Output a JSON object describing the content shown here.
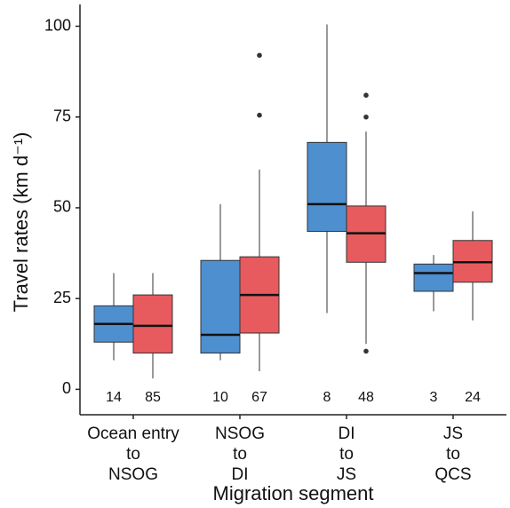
{
  "chart_data": {
    "type": "box",
    "x_label": "Migration segment",
    "y_label": "Travel rates (km d⁻¹)",
    "categories": [
      [
        "Ocean entry",
        "to",
        "NSOG"
      ],
      [
        "NSOG",
        "to",
        "DI"
      ],
      [
        "DI",
        "to",
        "JS"
      ],
      [
        "JS",
        "to",
        "QCS"
      ]
    ],
    "ylim": [
      -7,
      106
    ],
    "yticks": [
      0,
      25,
      50,
      75,
      100
    ],
    "series": [
      {
        "color": "#4e8fcf",
        "n": [
          14,
          10,
          8,
          3
        ],
        "boxes": [
          {
            "whislo": 8,
            "q1": 13,
            "med": 18,
            "q3": 23,
            "whishi": 32,
            "fliers": []
          },
          {
            "whislo": 8,
            "q1": 10,
            "med": 15,
            "q3": 35.5,
            "whishi": 51,
            "fliers": []
          },
          {
            "whislo": 21,
            "q1": 43.5,
            "med": 51,
            "q3": 68,
            "whishi": 100.5,
            "fliers": []
          },
          {
            "whislo": 21.5,
            "q1": 27,
            "med": 32,
            "q3": 34.5,
            "whishi": 37,
            "fliers": []
          }
        ]
      },
      {
        "color": "#e75a5e",
        "n": [
          85,
          67,
          48,
          24
        ],
        "boxes": [
          {
            "whislo": 3,
            "q1": 10,
            "med": 17.5,
            "q3": 26,
            "whishi": 32,
            "fliers": []
          },
          {
            "whislo": 5,
            "q1": 15.5,
            "med": 26,
            "q3": 36.5,
            "whishi": 60.5,
            "fliers": [
              75.5,
              92
            ]
          },
          {
            "whislo": 12.5,
            "q1": 35,
            "med": 43,
            "q3": 50.5,
            "whishi": 71,
            "fliers": [
              10.5,
              75,
              81
            ]
          },
          {
            "whislo": 19,
            "q1": 29.5,
            "med": 35,
            "q3": 41,
            "whishi": 49,
            "fliers": []
          }
        ]
      }
    ]
  }
}
